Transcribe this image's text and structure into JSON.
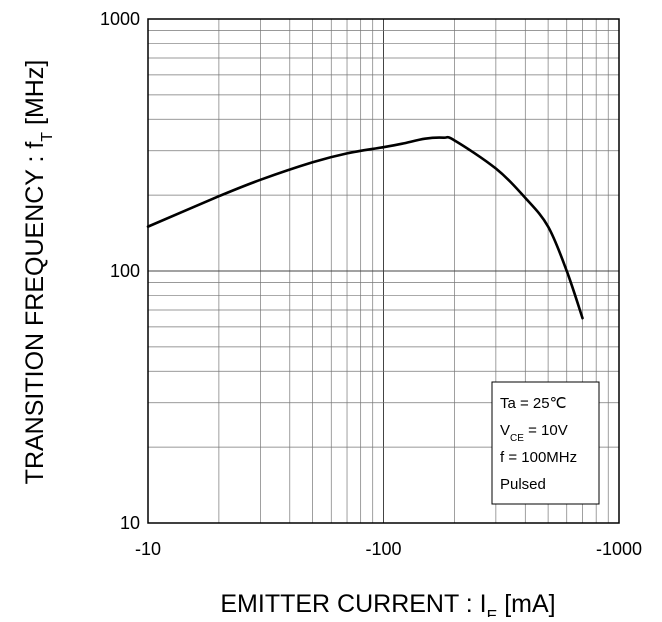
{
  "chart_data": {
    "type": "line",
    "title": "",
    "xlabel": {
      "main": "EMITTER CURRENT : I",
      "sub": "E",
      "tail": " [mA]"
    },
    "ylabel": {
      "main": "TRANSITION FREQUENCY : f",
      "sub": "T",
      "tail": " [MHz]"
    },
    "x_scale": "log",
    "y_scale": "log",
    "x_magnitude_range": [
      10,
      1000
    ],
    "x_sign": "negative",
    "ylim": [
      10,
      1000
    ],
    "x_ticks": [
      {
        "value": 10,
        "label": "-10"
      },
      {
        "value": 100,
        "label": "-100"
      },
      {
        "value": 1000,
        "label": "-1000"
      }
    ],
    "y_ticks": [
      {
        "value": 10,
        "label": "10"
      },
      {
        "value": 100,
        "label": "100"
      },
      {
        "value": 1000,
        "label": "1000"
      }
    ],
    "grid": true,
    "legend": {
      "placement": "bottom-right",
      "lines": [
        {
          "main": "Ta = 25℃",
          "sub": "",
          "tail": ""
        },
        {
          "main": "V",
          "sub": "CE",
          "tail": " = 10V"
        },
        {
          "main": "f = 100MHz",
          "sub": "",
          "tail": ""
        },
        {
          "main": "Pulsed",
          "sub": "",
          "tail": ""
        }
      ]
    },
    "series": [
      {
        "x": [
          -10,
          -20,
          -30,
          -50,
          -70,
          -100,
          -120,
          -150,
          -180,
          -200,
          -300,
          -400,
          -500,
          -600,
          -700
        ],
        "y": [
          150,
          198,
          230,
          270,
          293,
          310,
          320,
          335,
          338,
          330,
          255,
          195,
          150,
          100,
          65
        ]
      }
    ],
    "colors": {
      "line": "#000000",
      "grid": "#777777",
      "axis": "#000000",
      "text": "#000000"
    }
  }
}
